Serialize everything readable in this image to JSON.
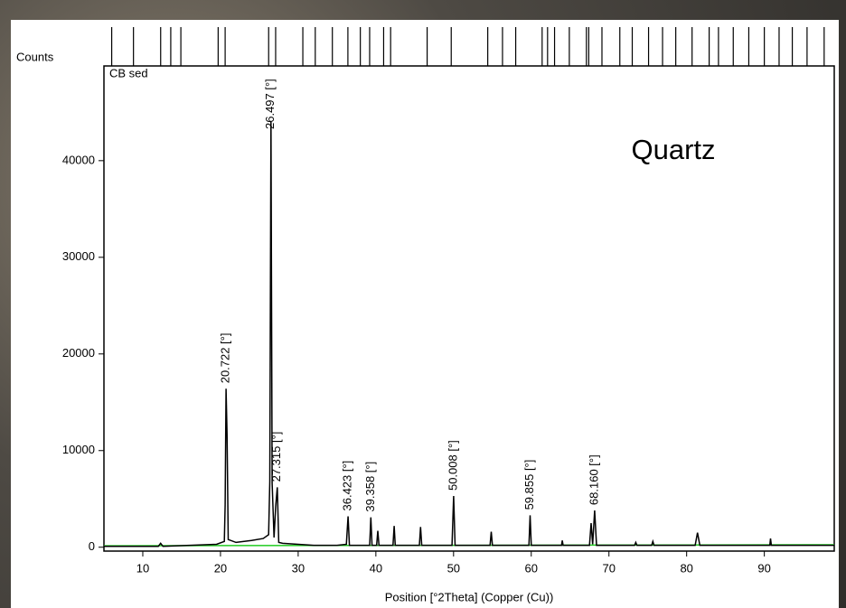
{
  "chart_data": {
    "type": "line",
    "y_label": "Counts",
    "x_label": "Position [°2Theta] (Copper (Cu))",
    "sample_name": "CB sed",
    "phase_label": "Quartz",
    "xlim": [
      5,
      99
    ],
    "xticks": [
      10,
      20,
      30,
      40,
      50,
      60,
      70,
      80,
      90
    ],
    "ylim": [
      -400,
      49800
    ],
    "yticks": [
      0,
      10000,
      20000,
      30000,
      40000
    ],
    "color": "#000000",
    "x": [
      5,
      12,
      12.3,
      12.6,
      19.5,
      20.5,
      20.6,
      20.722,
      20.85,
      21,
      22,
      24,
      25.5,
      26.2,
      26.35,
      26.497,
      26.65,
      26.9,
      27.1,
      27.315,
      27.5,
      28,
      30,
      32,
      35,
      36.2,
      36.423,
      36.6,
      39.2,
      39.358,
      39.5,
      40.1,
      40.25,
      40.4,
      42.2,
      42.35,
      42.5,
      45.6,
      45.75,
      45.9,
      49.8,
      50.008,
      50.2,
      54.7,
      54.85,
      55,
      59.7,
      59.855,
      60,
      63.9,
      64,
      64.1,
      67.5,
      67.7,
      67.9,
      68.16,
      68.4,
      73.3,
      73.45,
      73.6,
      75.5,
      75.65,
      75.8,
      81.1,
      81.4,
      81.7,
      90.7,
      90.8,
      90.9,
      99
    ],
    "values": [
      100,
      100,
      400,
      100,
      300,
      600,
      4400,
      16400,
      11700,
      800,
      500,
      700,
      900,
      1300,
      6800,
      44000,
      6600,
      1000,
      4200,
      6200,
      500,
      400,
      300,
      200,
      200,
      300,
      3200,
      200,
      200,
      3100,
      200,
      200,
      1700,
      200,
      200,
      2200,
      200,
      200,
      2100,
      200,
      200,
      5300,
      200,
      200,
      1600,
      200,
      200,
      3300,
      200,
      200,
      700,
      200,
      200,
      2500,
      300,
      3800,
      200,
      200,
      500,
      200,
      200,
      600,
      200,
      200,
      1500,
      200,
      200,
      900,
      200,
      200
    ],
    "background_line": {
      "color": "#22cc22",
      "x": [
        5,
        99
      ],
      "values": [
        150,
        250
      ]
    },
    "peak_labels": [
      {
        "label": "20.722 [°]",
        "x": 20.722
      },
      {
        "label": "26.497 [°]",
        "x": 26.497
      },
      {
        "label": "27.315 [°]",
        "x": 27.315
      },
      {
        "label": "36.423 [°]",
        "x": 36.423
      },
      {
        "label": "39.358 [°]",
        "x": 39.358
      },
      {
        "label": "50.008 [°]",
        "x": 50.008
      },
      {
        "label": "59.855 [°]",
        "x": 59.855
      },
      {
        "label": "68.160 [°]",
        "x": 68.16
      }
    ],
    "reference_positions": [
      6.0,
      8.8,
      12.3,
      13.6,
      14.9,
      19.7,
      20.6,
      26.2,
      27.1,
      30.6,
      32.2,
      34.4,
      36.4,
      38.0,
      39.2,
      41.0,
      41.9,
      46.6,
      49.7,
      54.4,
      56.3,
      58.0,
      61.4,
      62.1,
      63.0,
      64.9,
      67.1,
      67.4,
      69.1,
      71.4,
      73.0,
      75.1,
      76.9,
      78.6,
      80.7,
      82.9,
      84.1,
      86.0,
      88.0,
      90.0,
      91.9,
      93.6,
      95.5,
      97.7
    ]
  }
}
